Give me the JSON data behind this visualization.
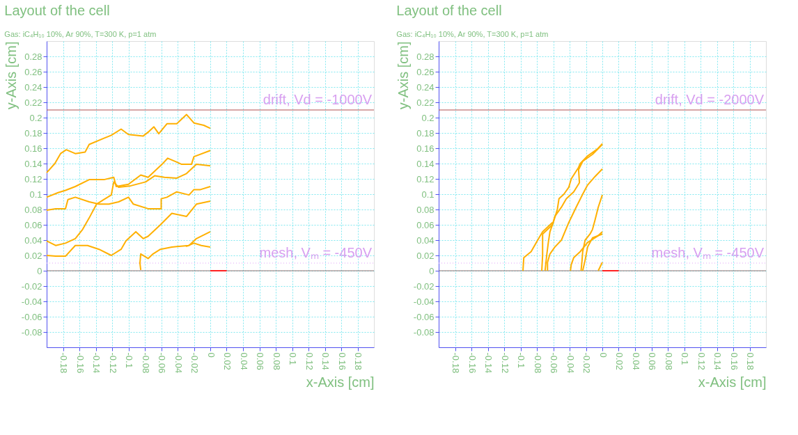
{
  "chart_data": [
    {
      "type": "line",
      "title": "Layout of the cell",
      "subtitle": "Gas: iC₄H₁₀ 10%, Ar 90%, T=300 K, p=1 atm",
      "xlabel": "x-Axis [cm]",
      "ylabel": "y-Axis [cm]",
      "xlim": [
        -0.2,
        0.2
      ],
      "ylim": [
        -0.1,
        0.3
      ],
      "xticks": [
        -0.18,
        -0.16,
        -0.14,
        -0.12,
        -0.1,
        -0.08,
        -0.06,
        -0.04,
        -0.02,
        0,
        0.02,
        0.04,
        0.06,
        0.08,
        0.1,
        0.12,
        0.14,
        0.16,
        0.18
      ],
      "yticks": [
        -0.08,
        -0.06,
        -0.04,
        -0.02,
        0,
        0.02,
        0.04,
        0.06,
        0.08,
        0.1,
        0.12,
        0.14,
        0.16,
        0.18,
        0.2,
        0.22,
        0.24,
        0.26,
        0.28
      ],
      "grid": true,
      "line_style": "solid",
      "ref_lines": [
        {
          "axis": "y",
          "value": 0.21,
          "color": "#b05050",
          "line_style": "solid"
        },
        {
          "axis": "y",
          "value": 0.01,
          "color": "#e0a0f8",
          "line_style": "dotted"
        },
        {
          "axis": "y",
          "value": 0,
          "color": "#907070",
          "line_style": "solid"
        }
      ],
      "annotations": [
        {
          "text": "drift, Vd = -1000V",
          "y": 0.21
        },
        {
          "text": "mesh, Vₘ = -450V",
          "y": 0.01
        }
      ],
      "series": [
        {
          "color": "#ffb000",
          "x": [
            -0.2,
            -0.19,
            -0.183,
            -0.176,
            -0.165,
            -0.153,
            -0.148,
            -0.13,
            -0.121,
            -0.109,
            -0.1,
            -0.082,
            -0.076,
            -0.069,
            -0.063,
            -0.053,
            -0.041,
            -0.029,
            -0.02,
            -0.008,
            0
          ],
          "values": [
            0.128,
            0.14,
            0.153,
            0.158,
            0.153,
            0.155,
            0.165,
            0.173,
            0.177,
            0.185,
            0.178,
            0.176,
            0.181,
            0.188,
            0.179,
            0.192,
            0.192,
            0.204,
            0.193,
            0.19,
            0.186
          ]
        },
        {
          "color": "#ffb000",
          "x": [
            -0.2,
            -0.186,
            -0.177,
            -0.165,
            -0.148,
            -0.13,
            -0.118,
            -0.115,
            -0.1,
            -0.085,
            -0.076,
            -0.059,
            -0.052,
            -0.041,
            -0.035,
            -0.023,
            -0.02,
            0
          ],
          "values": [
            0.096,
            0.102,
            0.105,
            0.11,
            0.119,
            0.119,
            0.122,
            0.11,
            0.113,
            0.125,
            0.122,
            0.139,
            0.147,
            0.142,
            0.139,
            0.139,
            0.149,
            0.157
          ]
        },
        {
          "color": "#ffb000",
          "x": [
            -0.2,
            -0.189,
            -0.177,
            -0.165,
            -0.156,
            -0.148,
            -0.139,
            -0.13,
            -0.121,
            -0.118,
            -0.112,
            -0.097,
            -0.079,
            -0.068,
            -0.056,
            -0.041,
            -0.029,
            -0.017,
            0
          ],
          "values": [
            0.039,
            0.033,
            0.036,
            0.042,
            0.054,
            0.069,
            0.087,
            0.093,
            0.099,
            0.116,
            0.109,
            0.111,
            0.116,
            0.124,
            0.122,
            0.121,
            0.127,
            0.139,
            0.137
          ]
        },
        {
          "color": "#ffb000",
          "x": [
            -0.2,
            -0.189,
            -0.177,
            -0.174,
            -0.165,
            -0.148,
            -0.136,
            -0.124,
            -0.112,
            -0.1,
            -0.094,
            -0.076,
            -0.06,
            -0.06,
            -0.053,
            -0.041,
            -0.026,
            -0.02,
            -0.012,
            0
          ],
          "values": [
            0.079,
            0.081,
            0.081,
            0.093,
            0.096,
            0.09,
            0.087,
            0.087,
            0.09,
            0.096,
            0.087,
            0.081,
            0.081,
            0.094,
            0.096,
            0.103,
            0.099,
            0.106,
            0.106,
            0.11
          ]
        },
        {
          "color": "#ffb000",
          "x": [
            -0.2,
            -0.189,
            -0.177,
            -0.165,
            -0.15,
            -0.136,
            -0.121,
            -0.109,
            -0.103,
            -0.091,
            -0.082,
            -0.076,
            -0.061,
            -0.047,
            -0.029,
            -0.017,
            0
          ],
          "values": [
            0.02,
            0.019,
            0.019,
            0.033,
            0.033,
            0.028,
            0.02,
            0.028,
            0.039,
            0.051,
            0.042,
            0.045,
            0.06,
            0.075,
            0.071,
            0.087,
            0.091
          ]
        },
        {
          "color": "#ffb000",
          "x": [
            -0.085,
            -0.086,
            -0.085,
            -0.076,
            -0.07,
            -0.061,
            -0.047,
            -0.026,
            -0.017,
            0
          ],
          "values": [
            0.001,
            0.01,
            0.022,
            0.016,
            0.022,
            0.028,
            0.031,
            0.033,
            0.042,
            0.051
          ]
        },
        {
          "color": "#ffb000",
          "x": [
            -0.03,
            -0.029,
            -0.02,
            -0.011,
            0
          ],
          "values": [
            0.033,
            0.032,
            0.036,
            0.033,
            0.031
          ]
        },
        {
          "color": "#ff2020",
          "x": [
            0,
            0.02
          ],
          "values": [
            0,
            0
          ]
        }
      ]
    },
    {
      "type": "line",
      "title": "Layout of the cell",
      "subtitle": "Gas: iC₄H₁₀ 10%, Ar 90%, T=300 K, p=1 atm",
      "xlabel": "x-Axis [cm]",
      "ylabel": "y-Axis [cm]",
      "xlim": [
        -0.2,
        0.2
      ],
      "ylim": [
        -0.1,
        0.3
      ],
      "xticks": [
        -0.18,
        -0.16,
        -0.14,
        -0.12,
        -0.1,
        -0.08,
        -0.06,
        -0.04,
        -0.02,
        0,
        0.02,
        0.04,
        0.06,
        0.08,
        0.1,
        0.12,
        0.14,
        0.16,
        0.18
      ],
      "yticks": [
        -0.08,
        -0.06,
        -0.04,
        -0.02,
        0,
        0.02,
        0.04,
        0.06,
        0.08,
        0.1,
        0.12,
        0.14,
        0.16,
        0.18,
        0.2,
        0.22,
        0.24,
        0.26,
        0.28
      ],
      "grid": true,
      "line_style": "solid",
      "ref_lines": [
        {
          "axis": "y",
          "value": 0.21,
          "color": "#b05050",
          "line_style": "solid"
        },
        {
          "axis": "y",
          "value": 0.01,
          "color": "#e0a0f8",
          "line_style": "dotted"
        },
        {
          "axis": "y",
          "value": 0,
          "color": "#907070",
          "line_style": "solid"
        }
      ],
      "annotations": [
        {
          "text": "drift, Vd = -2000V",
          "y": 0.21
        },
        {
          "text": "mesh, Vₘ = -450V",
          "y": 0.01
        }
      ],
      "series": [
        {
          "color": "#ffb000",
          "x": [
            -0.07,
            -0.068,
            -0.066,
            -0.064,
            -0.06,
            -0.055,
            -0.053,
            -0.047,
            -0.041,
            -0.038,
            -0.029,
            -0.027,
            -0.018,
            -0.006,
            0
          ],
          "values": [
            0,
            0.02,
            0.037,
            0.051,
            0.063,
            0.08,
            0.094,
            0.1,
            0.109,
            0.12,
            0.135,
            0.14,
            0.15,
            0.159,
            0.166
          ]
        },
        {
          "color": "#ffb000",
          "x": [
            -0.074,
            -0.073,
            -0.073,
            -0.061,
            -0.058,
            -0.05,
            -0.044,
            -0.035,
            -0.028,
            -0.029,
            -0.024,
            -0.012,
            0
          ],
          "values": [
            0,
            0.02,
            0.048,
            0.06,
            0.071,
            0.083,
            0.094,
            0.103,
            0.115,
            0.132,
            0.143,
            0.152,
            0.165
          ]
        },
        {
          "color": "#ffb000",
          "x": [
            -0.067,
            -0.067,
            -0.064,
            -0.058,
            -0.05,
            -0.041,
            -0.032,
            -0.024,
            -0.018,
            -0.009,
            0
          ],
          "values": [
            0,
            0.011,
            0.022,
            0.031,
            0.04,
            0.063,
            0.083,
            0.1,
            0.112,
            0.123,
            0.133
          ]
        },
        {
          "color": "#ffb000",
          "x": [
            -0.026,
            -0.025,
            -0.024,
            -0.021,
            -0.015,
            -0.012,
            -0.009,
            -0.005,
            0
          ],
          "values": [
            0,
            0.011,
            0.025,
            0.04,
            0.048,
            0.054,
            0.066,
            0.083,
            0.099
          ]
        },
        {
          "color": "#ffb000",
          "x": [
            -0.039,
            -0.038,
            -0.035,
            -0.027,
            -0.018,
            -0.006,
            0
          ],
          "values": [
            0,
            0.008,
            0.017,
            0.025,
            0.037,
            0.045,
            0.051
          ]
        },
        {
          "color": "#ffb000",
          "x": [
            -0.024,
            -0.021,
            -0.018,
            -0.012,
            0
          ],
          "values": [
            0,
            0.014,
            0.031,
            0.043,
            0.048
          ]
        },
        {
          "color": "#ffb000",
          "x": [
            -0.005,
            0
          ],
          "values": [
            0,
            0.011
          ]
        },
        {
          "color": "#ffb000",
          "x": [
            -0.097,
            -0.096,
            -0.087,
            -0.079,
            -0.073,
            -0.061
          ],
          "values": [
            0,
            0.017,
            0.025,
            0.04,
            0.051,
            0.063
          ]
        },
        {
          "color": "#ff2020",
          "x": [
            0,
            0.02
          ],
          "values": [
            0,
            0
          ]
        }
      ]
    }
  ]
}
